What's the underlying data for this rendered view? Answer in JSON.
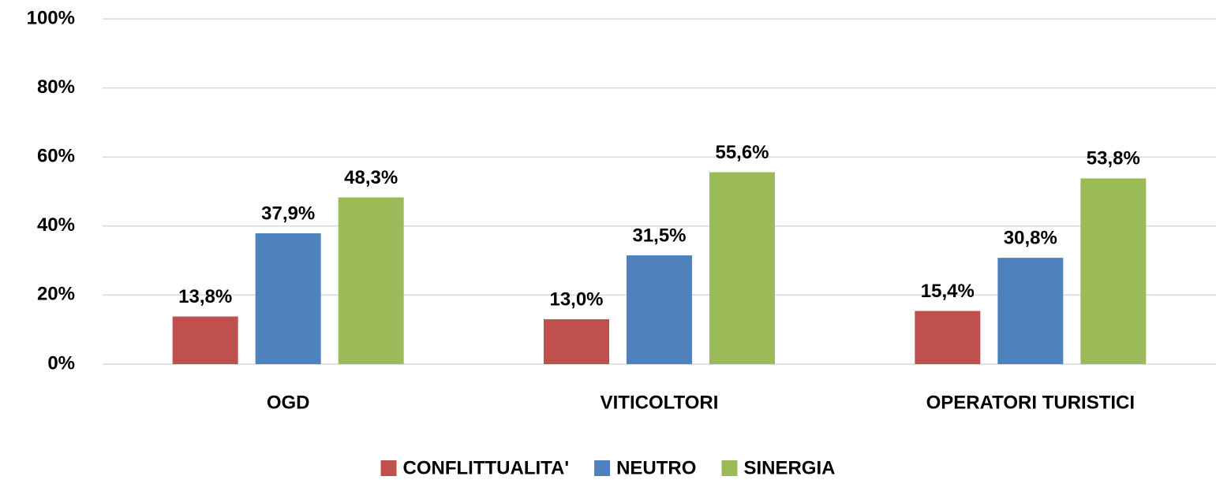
{
  "chart_data": {
    "type": "bar",
    "categories": [
      "OGD",
      "VITICOLTORI",
      "OPERATORI TURISTICI"
    ],
    "series": [
      {
        "name": "CONFLITTUALITA'",
        "color": "#c0504d",
        "values": [
          13.8,
          13.0,
          15.4
        ],
        "value_labels": [
          "13,8%",
          "13,0%",
          "15,4%"
        ]
      },
      {
        "name": "NEUTRO",
        "color": "#4f81bd",
        "values": [
          37.9,
          31.5,
          30.8
        ],
        "value_labels": [
          "37,9%",
          "31,5%",
          "30,8%"
        ]
      },
      {
        "name": "SINERGIA",
        "color": "#9bbb59",
        "values": [
          48.3,
          55.6,
          53.8
        ],
        "value_labels": [
          "48,3%",
          "55,6%",
          "53,8%"
        ]
      }
    ],
    "ylim": [
      0,
      100
    ],
    "yticks": [
      {
        "value": 0,
        "label": "0%"
      },
      {
        "value": 20,
        "label": "20%"
      },
      {
        "value": 40,
        "label": "40%"
      },
      {
        "value": 60,
        "label": "60%"
      },
      {
        "value": 80,
        "label": "80%"
      },
      {
        "value": 100,
        "label": "100%"
      }
    ],
    "grid": true,
    "legend": "bottom"
  }
}
